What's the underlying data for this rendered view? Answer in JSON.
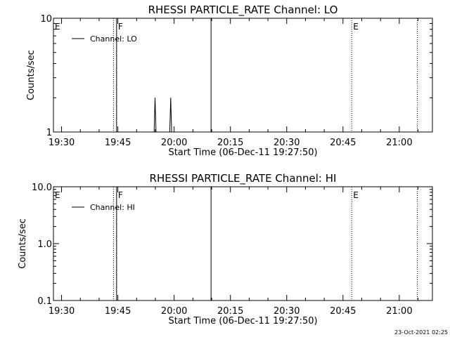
{
  "chart_data": [
    {
      "type": "line",
      "title": "RHESSI PARTICLE_RATE Channel: LO",
      "xlabel": "Start Time (06-Dec-11 19:27:50)",
      "ylabel": "Counts/sec",
      "y_scale": "log",
      "ylim": [
        1,
        10
      ],
      "y_ticks": [
        1,
        10
      ],
      "y_tick_labels": [
        "1",
        "10"
      ],
      "xlim": [
        "19:27:50",
        "21:08:50"
      ],
      "x_ticks": [
        "19:30",
        "19:45",
        "20:00",
        "20:15",
        "20:30",
        "20:45",
        "21:00"
      ],
      "legend": {
        "position": "top-left",
        "entries": [
          "Channel: LO"
        ]
      },
      "series": [
        {
          "name": "Channel: LO",
          "points": [
            {
              "x": "19:54:40",
              "y": 1
            },
            {
              "x": "19:54:55",
              "y": 2
            },
            {
              "x": "19:55:10",
              "y": 1
            },
            {
              "x": "19:58:50",
              "y": 1
            },
            {
              "x": "19:59:05",
              "y": 2
            },
            {
              "x": "19:59:20",
              "y": 1
            }
          ]
        }
      ],
      "markers": [
        {
          "time": "19:27:50",
          "style": "dotted",
          "label": "E"
        },
        {
          "time": "19:43:50",
          "style": "dotted",
          "label": ""
        },
        {
          "time": "19:44:40",
          "style": "solid",
          "label": "F"
        },
        {
          "time": "20:09:50",
          "style": "solid",
          "label": ""
        },
        {
          "time": "20:47:20",
          "style": "dotted",
          "label": "E"
        },
        {
          "time": "21:04:50",
          "style": "dotted",
          "label": ""
        }
      ]
    },
    {
      "type": "line",
      "title": "RHESSI PARTICLE_RATE Channel: HI",
      "xlabel": "Start Time (06-Dec-11 19:27:50)",
      "ylabel": "Counts/sec",
      "y_scale": "log",
      "ylim": [
        0.1,
        10
      ],
      "y_ticks": [
        0.1,
        1,
        10
      ],
      "y_tick_labels": [
        "0.1",
        "1.0",
        "10.0"
      ],
      "xlim": [
        "19:27:50",
        "21:08:50"
      ],
      "x_ticks": [
        "19:30",
        "19:45",
        "20:00",
        "20:15",
        "20:30",
        "20:45",
        "21:00"
      ],
      "legend": {
        "position": "top-left",
        "entries": [
          "Channel: HI"
        ]
      },
      "series": [
        {
          "name": "Channel: HI",
          "points": []
        }
      ],
      "markers": [
        {
          "time": "19:27:50",
          "style": "dotted",
          "label": "E"
        },
        {
          "time": "19:43:50",
          "style": "dotted",
          "label": ""
        },
        {
          "time": "19:44:40",
          "style": "solid",
          "label": "F"
        },
        {
          "time": "20:09:50",
          "style": "solid",
          "label": ""
        },
        {
          "time": "20:47:20",
          "style": "dotted",
          "label": "E"
        },
        {
          "time": "21:04:50",
          "style": "dotted",
          "label": ""
        }
      ]
    }
  ],
  "footer": {
    "timestamp": "23-Oct-2021 02:25"
  }
}
